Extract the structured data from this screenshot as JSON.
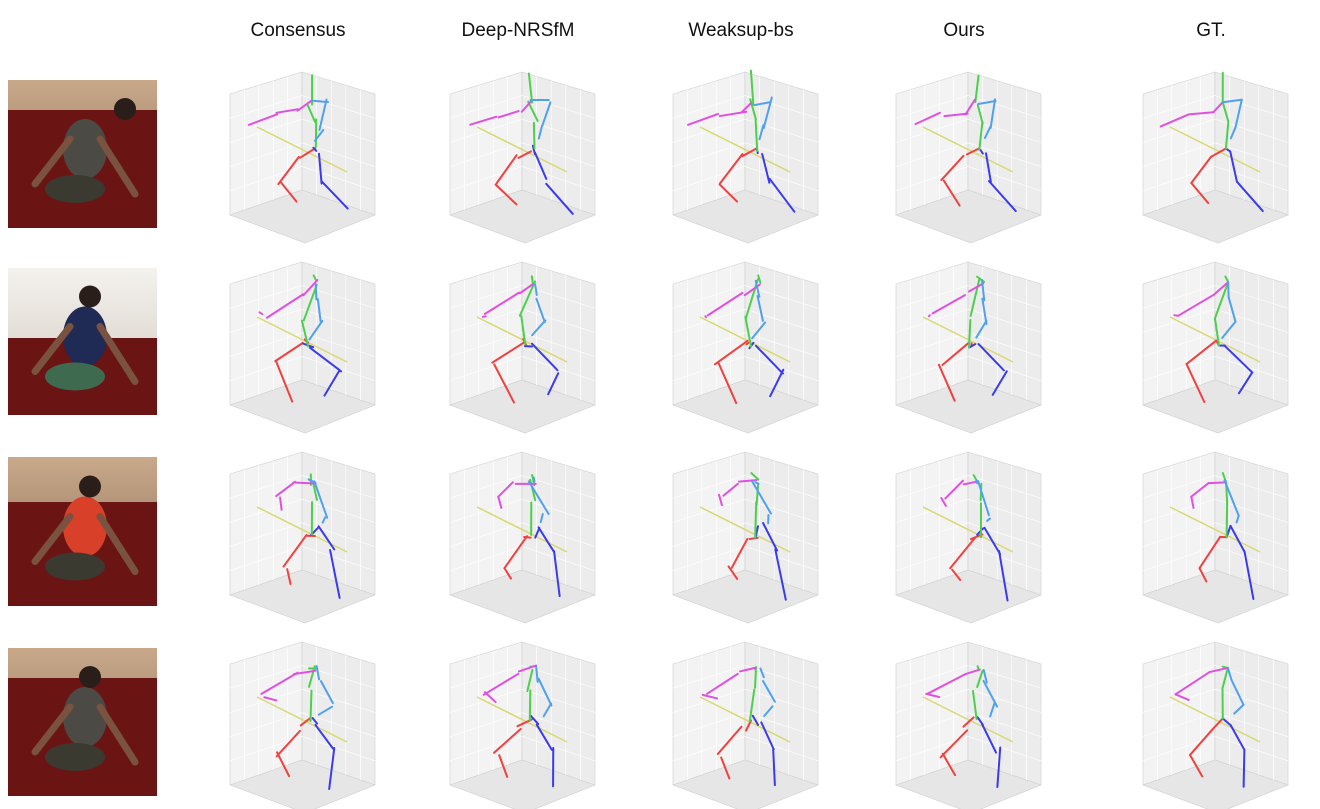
{
  "columns": [
    "Consensus",
    "Deep-NRSfM",
    "Weaksup-bs",
    "Ours",
    "GT."
  ]
}
